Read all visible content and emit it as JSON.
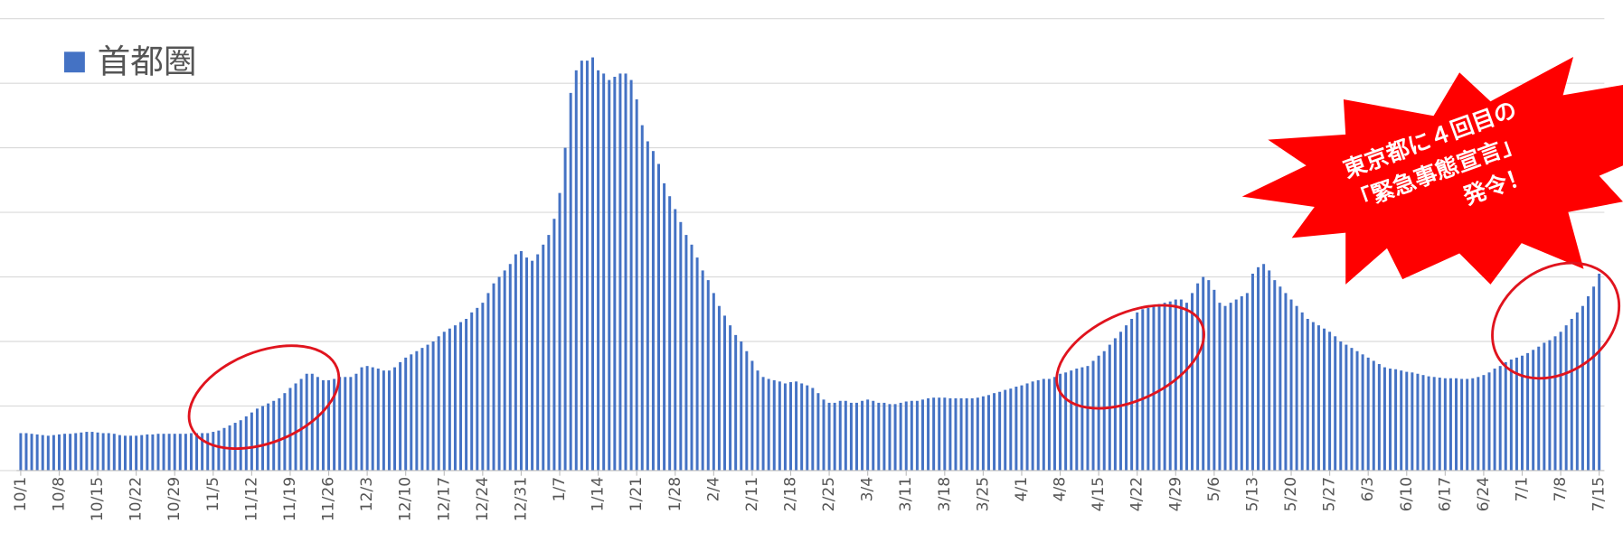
{
  "chart_data": {
    "type": "bar",
    "series": [
      {
        "name": "首都圏",
        "color": "#4472c4",
        "values": [
          0.58,
          0.58,
          0.57,
          0.56,
          0.55,
          0.54,
          0.55,
          0.56,
          0.57,
          0.57,
          0.58,
          0.59,
          0.6,
          0.6,
          0.59,
          0.58,
          0.58,
          0.57,
          0.55,
          0.54,
          0.54,
          0.54,
          0.55,
          0.56,
          0.56,
          0.57,
          0.57,
          0.57,
          0.57,
          0.57,
          0.57,
          0.58,
          0.58,
          0.58,
          0.58,
          0.6,
          0.62,
          0.66,
          0.7,
          0.74,
          0.78,
          0.84,
          0.9,
          0.96,
          1.0,
          1.04,
          1.08,
          1.12,
          1.2,
          1.28,
          1.35,
          1.42,
          1.5,
          1.5,
          1.45,
          1.4,
          1.4,
          1.42,
          1.45,
          1.45,
          1.45,
          1.5,
          1.6,
          1.62,
          1.6,
          1.58,
          1.55,
          1.55,
          1.6,
          1.68,
          1.75,
          1.8,
          1.85,
          1.9,
          1.95,
          2.0,
          2.08,
          2.15,
          2.2,
          2.25,
          2.3,
          2.35,
          2.45,
          2.52,
          2.6,
          2.75,
          2.9,
          3.0,
          3.1,
          3.2,
          3.35,
          3.4,
          3.3,
          3.25,
          3.35,
          3.5,
          3.65,
          3.9,
          4.3,
          5.0,
          5.85,
          6.2,
          6.35,
          6.35,
          6.4,
          6.2,
          6.15,
          6.05,
          6.1,
          6.15,
          6.15,
          6.05,
          5.75,
          5.35,
          5.1,
          4.95,
          4.75,
          4.45,
          4.25,
          4.05,
          3.85,
          3.65,
          3.5,
          3.3,
          3.1,
          2.95,
          2.75,
          2.55,
          2.4,
          2.25,
          2.1,
          2.0,
          1.85,
          1.7,
          1.55,
          1.45,
          1.42,
          1.4,
          1.38,
          1.35,
          1.37,
          1.38,
          1.35,
          1.32,
          1.28,
          1.2,
          1.1,
          1.05,
          1.05,
          1.08,
          1.08,
          1.05,
          1.05,
          1.08,
          1.1,
          1.08,
          1.05,
          1.05,
          1.03,
          1.03,
          1.05,
          1.07,
          1.08,
          1.08,
          1.1,
          1.12,
          1.13,
          1.13,
          1.13,
          1.12,
          1.12,
          1.12,
          1.12,
          1.12,
          1.13,
          1.15,
          1.17,
          1.2,
          1.22,
          1.25,
          1.27,
          1.3,
          1.32,
          1.35,
          1.38,
          1.4,
          1.42,
          1.42,
          1.45,
          1.5,
          1.52,
          1.55,
          1.58,
          1.6,
          1.62,
          1.7,
          1.78,
          1.85,
          1.95,
          2.05,
          2.15,
          2.25,
          2.35,
          2.45,
          2.5,
          2.52,
          2.55,
          2.58,
          2.6,
          2.62,
          2.65,
          2.65,
          2.6,
          2.75,
          2.9,
          3.0,
          2.95,
          2.8,
          2.6,
          2.55,
          2.6,
          2.65,
          2.7,
          2.75,
          3.05,
          3.15,
          3.2,
          3.1,
          2.95,
          2.85,
          2.75,
          2.65,
          2.55,
          2.45,
          2.35,
          2.3,
          2.25,
          2.2,
          2.15,
          2.08,
          2.0,
          1.95,
          1.9,
          1.85,
          1.8,
          1.75,
          1.7,
          1.65,
          1.6,
          1.58,
          1.57,
          1.55,
          1.53,
          1.52,
          1.5,
          1.48,
          1.46,
          1.45,
          1.44,
          1.43,
          1.43,
          1.43,
          1.42,
          1.42,
          1.43,
          1.45,
          1.48,
          1.52,
          1.58,
          1.62,
          1.68,
          1.72,
          1.75,
          1.78,
          1.82,
          1.87,
          1.92,
          1.98,
          2.02,
          2.08,
          2.15,
          2.25,
          2.35,
          2.45,
          2.55,
          2.7,
          2.85,
          3.05
        ]
      }
    ],
    "categories": [
      "10/1",
      null,
      null,
      null,
      null,
      null,
      null,
      "10/8",
      null,
      null,
      null,
      null,
      null,
      null,
      "10/15",
      null,
      null,
      null,
      null,
      null,
      null,
      "10/22",
      null,
      null,
      null,
      null,
      null,
      null,
      "10/29",
      null,
      null,
      null,
      null,
      null,
      null,
      "11/5",
      null,
      null,
      null,
      null,
      null,
      null,
      "11/12",
      null,
      null,
      null,
      null,
      null,
      null,
      "11/19",
      null,
      null,
      null,
      null,
      null,
      null,
      "11/26",
      null,
      null,
      null,
      null,
      null,
      null,
      "12/3",
      null,
      null,
      null,
      null,
      null,
      null,
      "12/10",
      null,
      null,
      null,
      null,
      null,
      null,
      "12/17",
      null,
      null,
      null,
      null,
      null,
      null,
      "12/24",
      null,
      null,
      null,
      null,
      null,
      null,
      "12/31",
      null,
      null,
      null,
      null,
      null,
      null,
      "1/7",
      null,
      null,
      null,
      null,
      null,
      null,
      "1/14",
      null,
      null,
      null,
      null,
      null,
      null,
      "1/21",
      null,
      null,
      null,
      null,
      null,
      null,
      "1/28",
      null,
      null,
      null,
      null,
      null,
      null,
      "2/4",
      null,
      null,
      null,
      null,
      null,
      null,
      "2/11",
      null,
      null,
      null,
      null,
      null,
      null,
      "2/18",
      null,
      null,
      null,
      null,
      null,
      null,
      "2/25",
      null,
      null,
      null,
      null,
      null,
      null,
      "3/4",
      null,
      null,
      null,
      null,
      null,
      null,
      "3/11",
      null,
      null,
      null,
      null,
      null,
      null,
      "3/18",
      null,
      null,
      null,
      null,
      null,
      null,
      "3/25",
      null,
      null,
      null,
      null,
      null,
      null,
      "4/1",
      null,
      null,
      null,
      null,
      null,
      null,
      "4/8",
      null,
      null,
      null,
      null,
      null,
      null,
      "4/15",
      null,
      null,
      null,
      null,
      null,
      null,
      "4/22",
      null,
      null,
      null,
      null,
      null,
      null,
      "4/29",
      null,
      null,
      null,
      null,
      null,
      null,
      "5/6",
      null,
      null,
      null,
      null,
      null,
      null,
      "5/13",
      null,
      null,
      null,
      null,
      null,
      null,
      "5/20",
      null,
      null,
      null,
      null,
      null,
      null,
      "5/27",
      null,
      null,
      null,
      null,
      null,
      null,
      "6/3",
      null,
      null,
      null,
      null,
      null,
      null,
      "6/10",
      null,
      null,
      null,
      null,
      null,
      null,
      "6/17",
      null,
      null,
      null,
      null,
      null,
      null,
      "6/24",
      null,
      null,
      null,
      null,
      null,
      null,
      "7/1",
      null,
      null,
      null,
      null,
      null,
      null,
      "7/8",
      null,
      null,
      null,
      null,
      null,
      null,
      "7/15"
    ],
    "ylim": [
      0,
      7
    ],
    "yticks": [
      0,
      1,
      2,
      3,
      4,
      5,
      6,
      7
    ],
    "show_ytick_labels": false,
    "grid": true,
    "legend": "top-left",
    "annotation": [
      "東京都に４回目の",
      "「緊急事態宣言」",
      "発令！"
    ]
  }
}
